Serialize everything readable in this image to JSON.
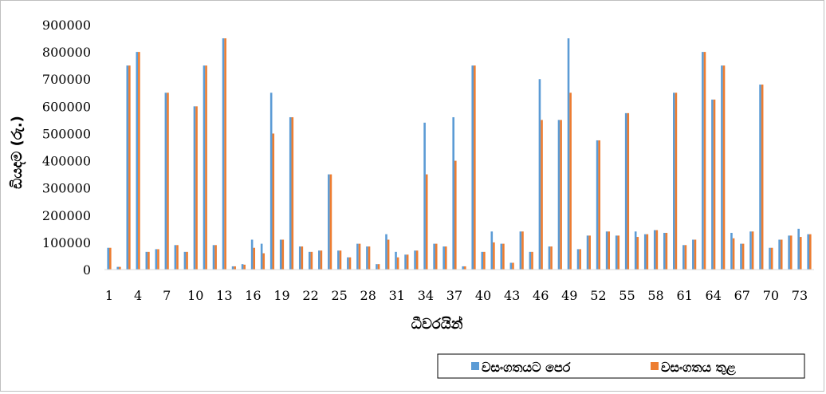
{
  "chart_data": {
    "type": "bar",
    "xlabel": "ධීවරයින්",
    "ylabel": "ඩියදම (රු.)",
    "ylim": [
      0,
      900000
    ],
    "yticks": [
      0,
      100000,
      200000,
      300000,
      400000,
      500000,
      600000,
      700000,
      800000,
      900000
    ],
    "x_tick_labels": [
      "1",
      "4",
      "7",
      "10",
      "13",
      "16",
      "19",
      "22",
      "25",
      "28",
      "31",
      "34",
      "37",
      "40",
      "43",
      "46",
      "49",
      "52",
      "55",
      "58",
      "61",
      "64",
      "67",
      "70",
      "73"
    ],
    "x_tick_every": 3,
    "categories": [
      1,
      2,
      3,
      4,
      5,
      6,
      7,
      8,
      9,
      10,
      11,
      12,
      13,
      14,
      15,
      16,
      17,
      18,
      19,
      20,
      21,
      22,
      23,
      24,
      25,
      26,
      27,
      28,
      29,
      30,
      31,
      32,
      33,
      34,
      35,
      36,
      37,
      38,
      39,
      40,
      41,
      42,
      43,
      44,
      45,
      46,
      47,
      48,
      49,
      50,
      51,
      52,
      53,
      54,
      55,
      56,
      57,
      58,
      59,
      60,
      61,
      62,
      63,
      64,
      65,
      66,
      67,
      68,
      69,
      70,
      71,
      72,
      73,
      74
    ],
    "legend_position": "bottom-right",
    "grid": false,
    "series": [
      {
        "name": "වසංගතයට පෙර",
        "color": "#5b9bd5",
        "values": [
          80000,
          10000,
          750000,
          800000,
          65000,
          75000,
          650000,
          90000,
          65000,
          600000,
          750000,
          90000,
          850000,
          12000,
          20000,
          110000,
          95000,
          650000,
          110000,
          560000,
          85000,
          65000,
          70000,
          350000,
          70000,
          45000,
          95000,
          85000,
          20000,
          130000,
          65000,
          55000,
          70000,
          540000,
          95000,
          85000,
          560000,
          12000,
          750000,
          65000,
          140000,
          95000,
          25000,
          140000,
          65000,
          700000,
          85000,
          550000,
          850000,
          75000,
          125000,
          475000,
          140000,
          125000,
          575000,
          140000,
          130000,
          145000,
          135000,
          650000,
          90000,
          110000,
          800000,
          625000,
          750000,
          135000,
          95000,
          140000,
          680000,
          80000,
          110000,
          125000,
          150000,
          130000
        ]
      },
      {
        "name": "වසංගතය තුළ",
        "color": "#ed7d31",
        "values": [
          80000,
          10000,
          750000,
          800000,
          65000,
          75000,
          650000,
          90000,
          65000,
          600000,
          750000,
          90000,
          850000,
          12000,
          18000,
          80000,
          60000,
          500000,
          110000,
          560000,
          85000,
          65000,
          70000,
          350000,
          70000,
          45000,
          95000,
          85000,
          20000,
          110000,
          45000,
          55000,
          70000,
          350000,
          95000,
          85000,
          400000,
          12000,
          750000,
          65000,
          100000,
          95000,
          25000,
          140000,
          65000,
          550000,
          85000,
          550000,
          650000,
          75000,
          125000,
          475000,
          140000,
          125000,
          575000,
          120000,
          130000,
          145000,
          135000,
          650000,
          90000,
          110000,
          800000,
          625000,
          750000,
          115000,
          95000,
          140000,
          680000,
          80000,
          110000,
          125000,
          120000,
          130000
        ]
      }
    ]
  }
}
